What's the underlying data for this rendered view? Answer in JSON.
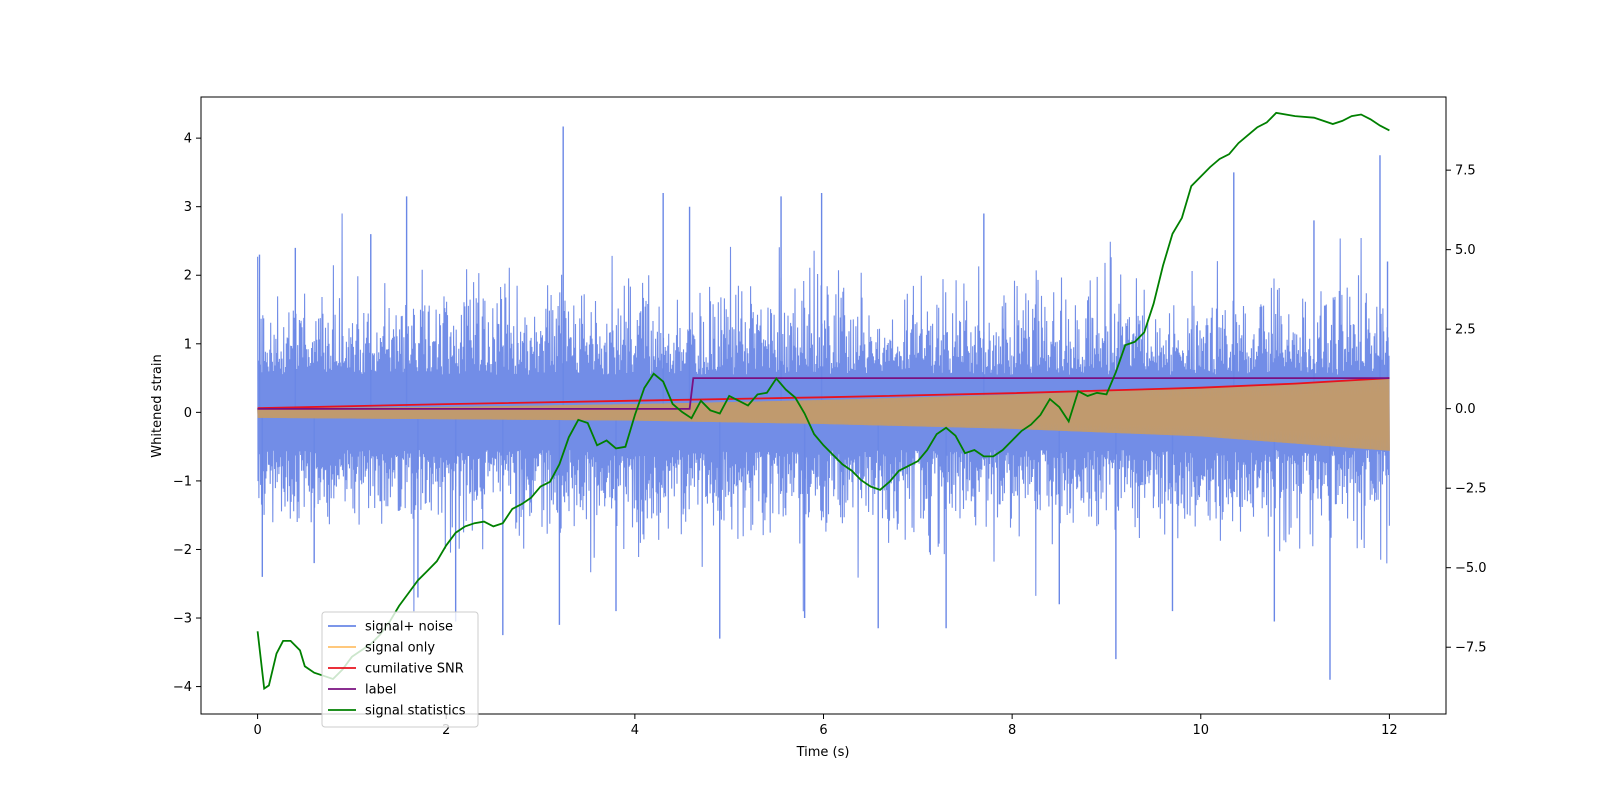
{
  "chart_data": {
    "type": "line",
    "title": "",
    "xlabel": "Time (s)",
    "ylabel": "Whitened strain",
    "y2label": "",
    "xlim": [
      -0.6,
      12.6
    ],
    "ylim": [
      -4.4,
      4.6
    ],
    "y2lim": [
      -9.6,
      9.8
    ],
    "grid": false,
    "legend_location": "lower-left",
    "x_ticks": [
      0,
      2,
      4,
      6,
      8,
      10,
      12
    ],
    "y_ticks": [
      -4,
      -3,
      -2,
      -1,
      0,
      1,
      2,
      3,
      4
    ],
    "y2_ticks": [
      -7.5,
      -5.0,
      -2.5,
      0.0,
      2.5,
      5.0,
      7.5
    ],
    "y2_tick_labels": [
      "−7.5",
      "−5.0",
      "−2.5",
      "0.0",
      "2.5",
      "5.0",
      "7.5"
    ],
    "series": [
      {
        "name": "signal+ noise",
        "color": "#6a87e6",
        "axis": "left",
        "description": "dense noisy band between ~ -2.5 and 2.5",
        "x_range": [
          0,
          12
        ],
        "band_typical": [
          -1.7,
          1.7
        ],
        "spikes": [
          {
            "x": 0.02,
            "y": 2.3
          },
          {
            "x": 0.05,
            "y": -2.4
          },
          {
            "x": 0.4,
            "y": 2.4
          },
          {
            "x": 0.6,
            "y": -2.2
          },
          {
            "x": 1.2,
            "y": 2.6
          },
          {
            "x": 1.58,
            "y": 3.15
          },
          {
            "x": 1.7,
            "y": -2.7
          },
          {
            "x": 2.1,
            "y": -3.05
          },
          {
            "x": 2.6,
            "y": -3.25
          },
          {
            "x": 3.2,
            "y": -3.1
          },
          {
            "x": 3.24,
            "y": 4.17
          },
          {
            "x": 3.8,
            "y": -2.9
          },
          {
            "x": 4.3,
            "y": 3.2
          },
          {
            "x": 4.58,
            "y": 3.0
          },
          {
            "x": 4.9,
            "y": -3.3
          },
          {
            "x": 5.55,
            "y": 3.15
          },
          {
            "x": 5.8,
            "y": -3.0
          },
          {
            "x": 5.98,
            "y": 3.2
          },
          {
            "x": 6.58,
            "y": -3.15
          },
          {
            "x": 7.3,
            "y": -3.15
          },
          {
            "x": 7.7,
            "y": 2.9
          },
          {
            "x": 8.5,
            "y": -2.8
          },
          {
            "x": 9.1,
            "y": -3.6
          },
          {
            "x": 9.7,
            "y": -2.9
          },
          {
            "x": 10.35,
            "y": 3.5
          },
          {
            "x": 10.78,
            "y": -3.05
          },
          {
            "x": 11.2,
            "y": 2.8
          },
          {
            "x": 11.37,
            "y": -3.9
          },
          {
            "x": 11.9,
            "y": 3.75
          },
          {
            "x": 11.98,
            "y": 2.2
          }
        ]
      },
      {
        "name": "signal only",
        "color": "#ffb347",
        "axis": "left",
        "description": "chirp with growing amplitude, centred near 0",
        "x": [
          0,
          2,
          4,
          6,
          8,
          10,
          12
        ],
        "upper": [
          0.06,
          0.08,
          0.12,
          0.18,
          0.26,
          0.36,
          0.5
        ],
        "lower": [
          -0.08,
          -0.1,
          -0.12,
          -0.17,
          -0.24,
          -0.35,
          -0.56
        ]
      },
      {
        "name": "cumilative SNR",
        "color": "#e8121e",
        "axis": "left",
        "x": [
          0,
          2,
          4,
          6,
          8,
          10,
          11,
          12
        ],
        "values": [
          0.06,
          0.12,
          0.17,
          0.22,
          0.28,
          0.36,
          0.42,
          0.5
        ]
      },
      {
        "name": "label",
        "color": "#7a1081",
        "axis": "left",
        "x": [
          0,
          4.58,
          4.62,
          12
        ],
        "values": [
          0.05,
          0.05,
          0.5,
          0.5
        ]
      },
      {
        "name": "signal statistics",
        "color": "#008000",
        "axis": "right",
        "x": [
          0,
          0.07,
          0.12,
          0.2,
          0.27,
          0.35,
          0.45,
          0.5,
          0.6,
          0.7,
          0.8,
          0.9,
          1.0,
          1.1,
          1.2,
          1.3,
          1.4,
          1.5,
          1.6,
          1.7,
          1.8,
          1.9,
          2.0,
          2.1,
          2.2,
          2.3,
          2.4,
          2.5,
          2.6,
          2.7,
          2.8,
          2.9,
          3.0,
          3.1,
          3.2,
          3.3,
          3.4,
          3.5,
          3.6,
          3.7,
          3.8,
          3.9,
          4.0,
          4.1,
          4.2,
          4.3,
          4.4,
          4.5,
          4.6,
          4.7,
          4.8,
          4.9,
          5.0,
          5.1,
          5.2,
          5.3,
          5.4,
          5.5,
          5.6,
          5.7,
          5.8,
          5.9,
          6.0,
          6.1,
          6.2,
          6.3,
          6.4,
          6.5,
          6.6,
          6.7,
          6.8,
          6.9,
          7.0,
          7.1,
          7.2,
          7.3,
          7.4,
          7.5,
          7.6,
          7.7,
          7.8,
          7.9,
          8.0,
          8.1,
          8.2,
          8.3,
          8.4,
          8.5,
          8.6,
          8.7,
          8.8,
          8.9,
          9.0,
          9.1,
          9.2,
          9.3,
          9.4,
          9.5,
          9.6,
          9.7,
          9.8,
          9.9,
          10.0,
          10.1,
          10.2,
          10.3,
          10.4,
          10.5,
          10.6,
          10.7,
          10.8,
          11.0,
          11.2,
          11.4,
          11.5,
          11.6,
          11.7,
          11.8,
          11.9,
          12.0
        ],
        "values": [
          -7.0,
          -8.8,
          -8.7,
          -7.7,
          -7.3,
          -7.3,
          -7.6,
          -8.1,
          -8.3,
          -8.4,
          -8.5,
          -8.2,
          -7.8,
          -7.6,
          -7.4,
          -7.1,
          -6.7,
          -6.2,
          -5.8,
          -5.4,
          -5.1,
          -4.8,
          -4.3,
          -3.9,
          -3.7,
          -3.6,
          -3.55,
          -3.7,
          -3.6,
          -3.15,
          -3.0,
          -2.8,
          -2.45,
          -2.3,
          -1.75,
          -0.9,
          -0.35,
          -0.45,
          -1.15,
          -1.0,
          -1.25,
          -1.2,
          -0.2,
          0.65,
          1.1,
          0.85,
          0.15,
          -0.1,
          -0.3,
          0.25,
          -0.05,
          -0.15,
          0.4,
          0.25,
          0.1,
          0.45,
          0.5,
          0.95,
          0.6,
          0.35,
          -0.15,
          -0.8,
          -1.15,
          -1.45,
          -1.75,
          -1.95,
          -2.25,
          -2.45,
          -2.55,
          -2.3,
          -1.95,
          -1.8,
          -1.65,
          -1.3,
          -0.8,
          -0.6,
          -0.85,
          -1.4,
          -1.3,
          -1.5,
          -1.5,
          -1.3,
          -1.0,
          -0.7,
          -0.5,
          -0.2,
          0.3,
          0.05,
          -0.4,
          0.55,
          0.4,
          0.5,
          0.45,
          1.15,
          2.0,
          2.1,
          2.4,
          3.3,
          4.5,
          5.5,
          6.0,
          7.0,
          7.3,
          7.6,
          7.85,
          8.0,
          8.35,
          8.6,
          8.85,
          9.0,
          9.3,
          9.2,
          9.15,
          8.95,
          9.05,
          9.2,
          9.25,
          9.1,
          8.9,
          8.75
        ]
      }
    ]
  }
}
